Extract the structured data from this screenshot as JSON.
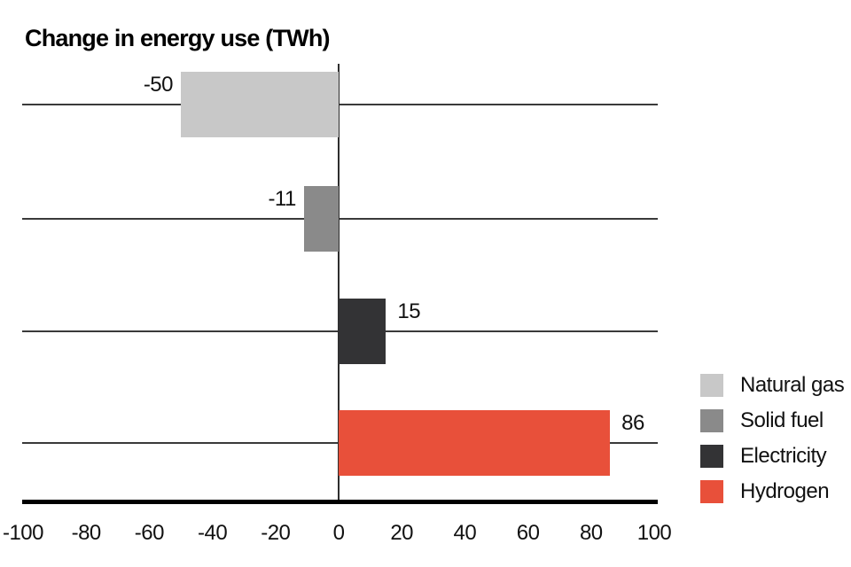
{
  "title": "Change in energy use (TWh)",
  "chart_data": {
    "type": "bar",
    "orientation": "horizontal",
    "title": "Change in energy use (TWh)",
    "categories": [
      "Natural gas",
      "Solid fuel",
      "Electricity",
      "Hydrogen"
    ],
    "values": [
      -50,
      -11,
      15,
      86
    ],
    "value_labels": [
      "-50",
      "-11",
      "15",
      "86"
    ],
    "colors": [
      "#c8c8c8",
      "#8a8a8a",
      "#333335",
      "#e8503a"
    ],
    "xlim": [
      -100,
      100
    ],
    "x_ticks": [
      -100,
      -80,
      -60,
      -40,
      -20,
      0,
      20,
      40,
      60,
      80,
      100
    ],
    "grid": "horizontal line through each bar row",
    "legend_position": "right",
    "legend": [
      {
        "label": "Natural gas",
        "color": "#c8c8c8"
      },
      {
        "label": "Solid fuel",
        "color": "#8a8a8a"
      },
      {
        "label": "Electricity",
        "color": "#333335"
      },
      {
        "label": "Hydrogen",
        "color": "#e8503a"
      }
    ],
    "axis_color": "#000000",
    "gridline_color": "#3a3a3a",
    "text_color": "#111111"
  }
}
